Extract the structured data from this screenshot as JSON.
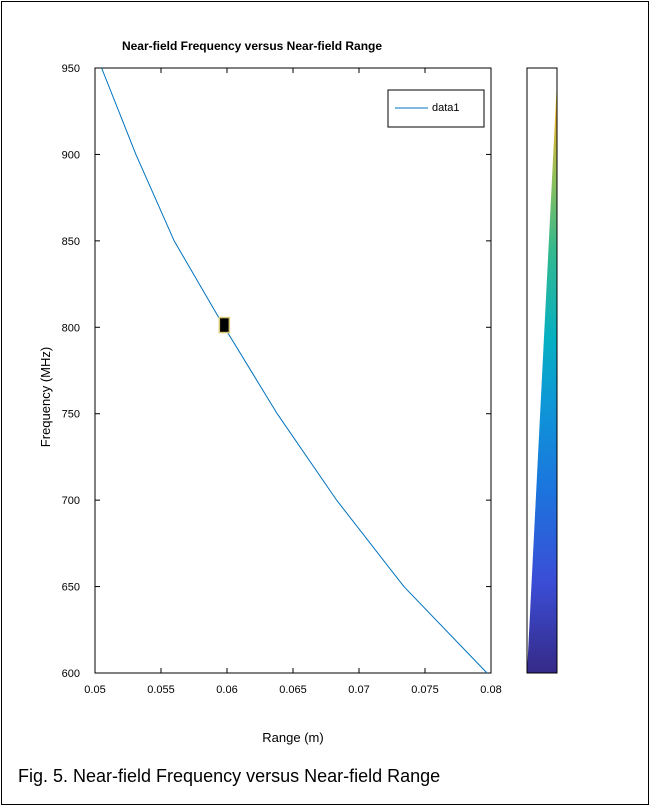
{
  "chart_data": {
    "type": "line",
    "title": "Near-field Frequency versus Near-field Range",
    "xlabel": "Range (m)",
    "ylabel": "Frequency (MHz)",
    "xlim": [
      0.05,
      0.08
    ],
    "ylim": [
      600,
      950
    ],
    "xticks": [
      0.05,
      0.055,
      0.06,
      0.065,
      0.07,
      0.075,
      0.08
    ],
    "xtick_labels": [
      "0.05",
      "0.055",
      "0.06",
      "0.065",
      "0.07",
      "0.075",
      "0.08"
    ],
    "yticks": [
      600,
      650,
      700,
      750,
      800,
      850,
      900,
      950
    ],
    "ytick_labels": [
      "600",
      "650",
      "700",
      "750",
      "800",
      "850",
      "900",
      "950"
    ],
    "grid": false,
    "legend": {
      "entries": [
        "data1"
      ],
      "position": "top-right"
    },
    "series": [
      {
        "name": "data1",
        "color": "#0072BD",
        "x": [
          0.0505,
          0.0531,
          0.056,
          0.0598,
          0.0638,
          0.0683,
          0.0734,
          0.0797
        ],
        "y": [
          950,
          900,
          850,
          800,
          750,
          700,
          650,
          600
        ]
      }
    ],
    "marker": {
      "x": 0.0598,
      "y": 801
    },
    "colorbar": {
      "colormap": "parula",
      "ticks": []
    }
  },
  "caption": "Fig. 5. Near-field Frequency versus Near-field Range"
}
